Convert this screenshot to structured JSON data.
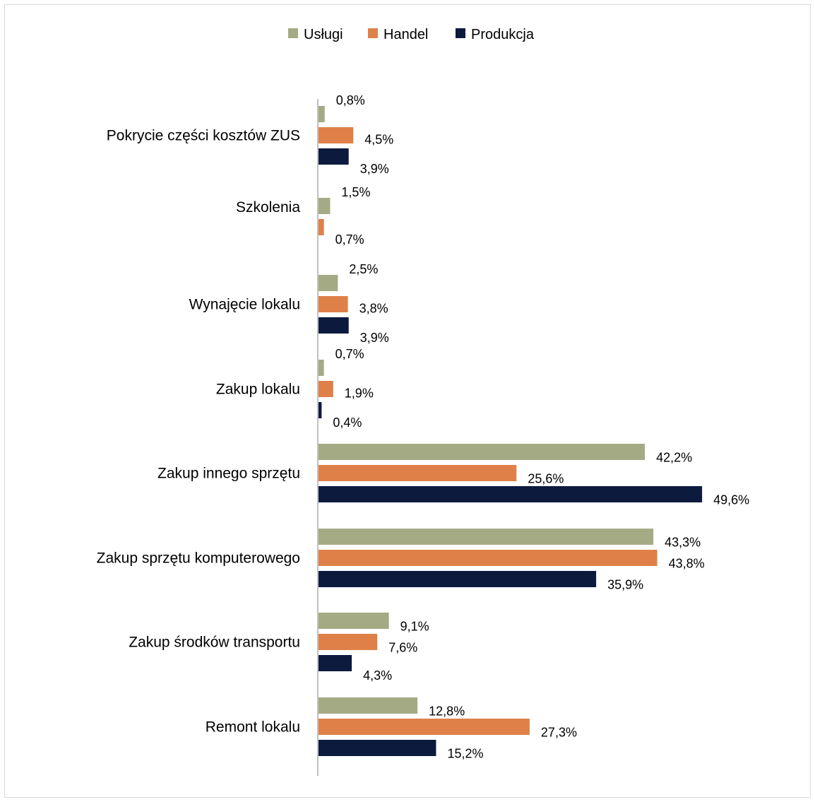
{
  "chart_data": {
    "type": "bar",
    "orientation": "horizontal",
    "categories": [
      "Pokrycie części kosztów ZUS",
      "Szkolenia",
      "Wynajęcie lokalu",
      "Zakup lokalu",
      "Zakup innego sprzętu",
      "Zakup sprzętu komputerowego",
      "Zakup środków transportu",
      "Remont lokalu"
    ],
    "series": [
      {
        "name": "Usługi",
        "color": "#a4ab84",
        "values": [
          0.8,
          1.5,
          2.5,
          0.7,
          42.2,
          43.3,
          9.1,
          12.8
        ],
        "labels": [
          "0,8%",
          "1,5%",
          "2,5%",
          "0,7%",
          "42,2%",
          "43,3%",
          "9,1%",
          "12,8%"
        ]
      },
      {
        "name": "Handel",
        "color": "#df8049",
        "values": [
          4.5,
          0.7,
          3.8,
          1.9,
          25.6,
          43.8,
          7.6,
          27.3
        ],
        "labels": [
          "4,5%",
          "0,7%",
          "3,8%",
          "1,9%",
          "25,6%",
          "43,8%",
          "7,6%",
          "27,3%"
        ]
      },
      {
        "name": "Produkcja",
        "color": "#0c1a3e",
        "values": [
          3.9,
          null,
          3.9,
          0.4,
          49.6,
          35.9,
          4.3,
          15.2
        ],
        "labels": [
          "3,9%",
          "",
          "3,9%",
          "0,4%",
          "49,6%",
          "35,9%",
          "4,3%",
          "15,2%"
        ]
      }
    ],
    "legend_position": "top",
    "grid": false,
    "xlim": [
      0,
      50
    ]
  }
}
